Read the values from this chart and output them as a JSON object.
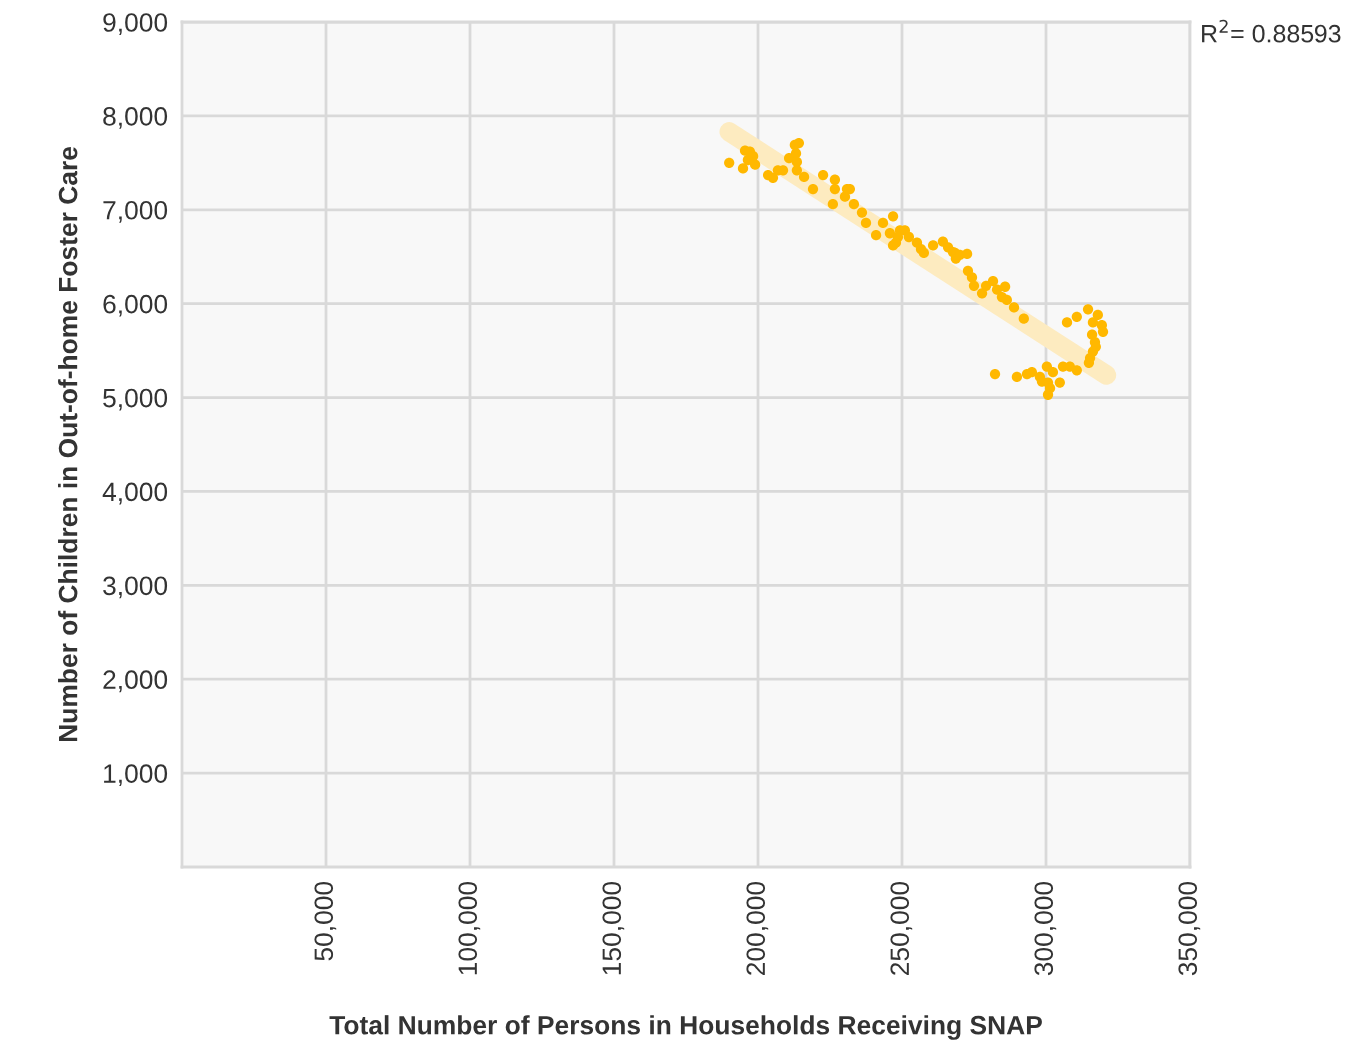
{
  "chart_data": {
    "type": "scatter",
    "xlabel": "Total Number of Persons in Households Receiving SNAP",
    "ylabel": "Number of Children in Out-of-home Foster Care",
    "annotations": [
      "R$^{2}$= 0.88593"
    ],
    "xlim": [
      0,
      350000
    ],
    "xticks": [
      {
        "value": 50000,
        "label": "50,000"
      },
      {
        "value": 100000,
        "label": "100,000"
      },
      {
        "value": 150000,
        "label": "150,000"
      },
      {
        "value": 200000,
        "label": "200,000"
      },
      {
        "value": 250000,
        "label": "250,000"
      },
      {
        "value": 300000,
        "label": "300,000"
      },
      {
        "value": 350000,
        "label": "350,000"
      }
    ],
    "ylim": [
      0,
      9000
    ],
    "yticks": [
      {
        "value": 1000,
        "label": "1,000"
      },
      {
        "value": 2000,
        "label": "2,000"
      },
      {
        "value": 3000,
        "label": "3,000"
      },
      {
        "value": 4000,
        "label": "4,000"
      },
      {
        "value": 5000,
        "label": "5,000"
      },
      {
        "value": 6000,
        "label": "6,000"
      },
      {
        "value": 7000,
        "label": "7,000"
      },
      {
        "value": 8000,
        "label": "8,000"
      },
      {
        "value": 9000,
        "label": "9,000"
      }
    ],
    "grid": true,
    "series": [
      {
        "type": "line",
        "color": "#fdebc0",
        "x": [
          190000,
          321000
        ],
        "values": [
          7830,
          5240
        ]
      },
      {
        "marker": "circle",
        "color": "#ffb800",
        "x": [
          190000,
          195500,
          197200,
          198300,
          194800,
          199000,
          196500,
          203500,
          205200,
          206900,
          208700,
          212800,
          214200,
          210800,
          213200,
          213500,
          213500,
          216000,
          219100,
          222600,
          226700,
          226700,
          226000,
          230900,
          231900,
          230200,
          233300,
          236100,
          237500,
          241000,
          243400,
          246900,
          245800,
          249300,
          251000,
          248600,
          246900,
          247900,
          252400,
          255200,
          256600,
          257600,
          260800,
          264200,
          266000,
          268400,
          268700,
          267700,
          270100,
          272600,
          272900,
          274300,
          275000,
          279200,
          281600,
          277800,
          283000,
          285800,
          284700,
          286400,
          288900,
          292300,
          314600,
          318000,
          310700,
          307300,
          316300,
          319400,
          319800,
          316000,
          317000,
          317300,
          316300,
          315300,
          314900,
          282300,
          289900,
          293400,
          295100,
          297900,
          300300,
          302400,
          305900,
          308300,
          310700,
          298600,
          300700,
          304800,
          301400,
          300700
        ],
        "values": [
          7500,
          7630,
          7620,
          7570,
          7440,
          7480,
          7530,
          7370,
          7340,
          7420,
          7420,
          7690,
          7710,
          7550,
          7600,
          7510,
          7420,
          7350,
          7220,
          7370,
          7320,
          7220,
          7060,
          7220,
          7220,
          7140,
          7060,
          6970,
          6860,
          6730,
          6860,
          6930,
          6750,
          6780,
          6780,
          6710,
          6620,
          6650,
          6710,
          6650,
          6580,
          6540,
          6620,
          6660,
          6600,
          6540,
          6480,
          6550,
          6520,
          6530,
          6350,
          6280,
          6190,
          6190,
          6240,
          6110,
          6150,
          6180,
          6070,
          6040,
          5960,
          5840,
          5940,
          5880,
          5860,
          5800,
          5800,
          5770,
          5700,
          5670,
          5590,
          5540,
          5490,
          5420,
          5370,
          5250,
          5220,
          5250,
          5270,
          5220,
          5330,
          5270,
          5330,
          5330,
          5290,
          5170,
          5160,
          5160,
          5100,
          5030
        ]
      }
    ]
  }
}
